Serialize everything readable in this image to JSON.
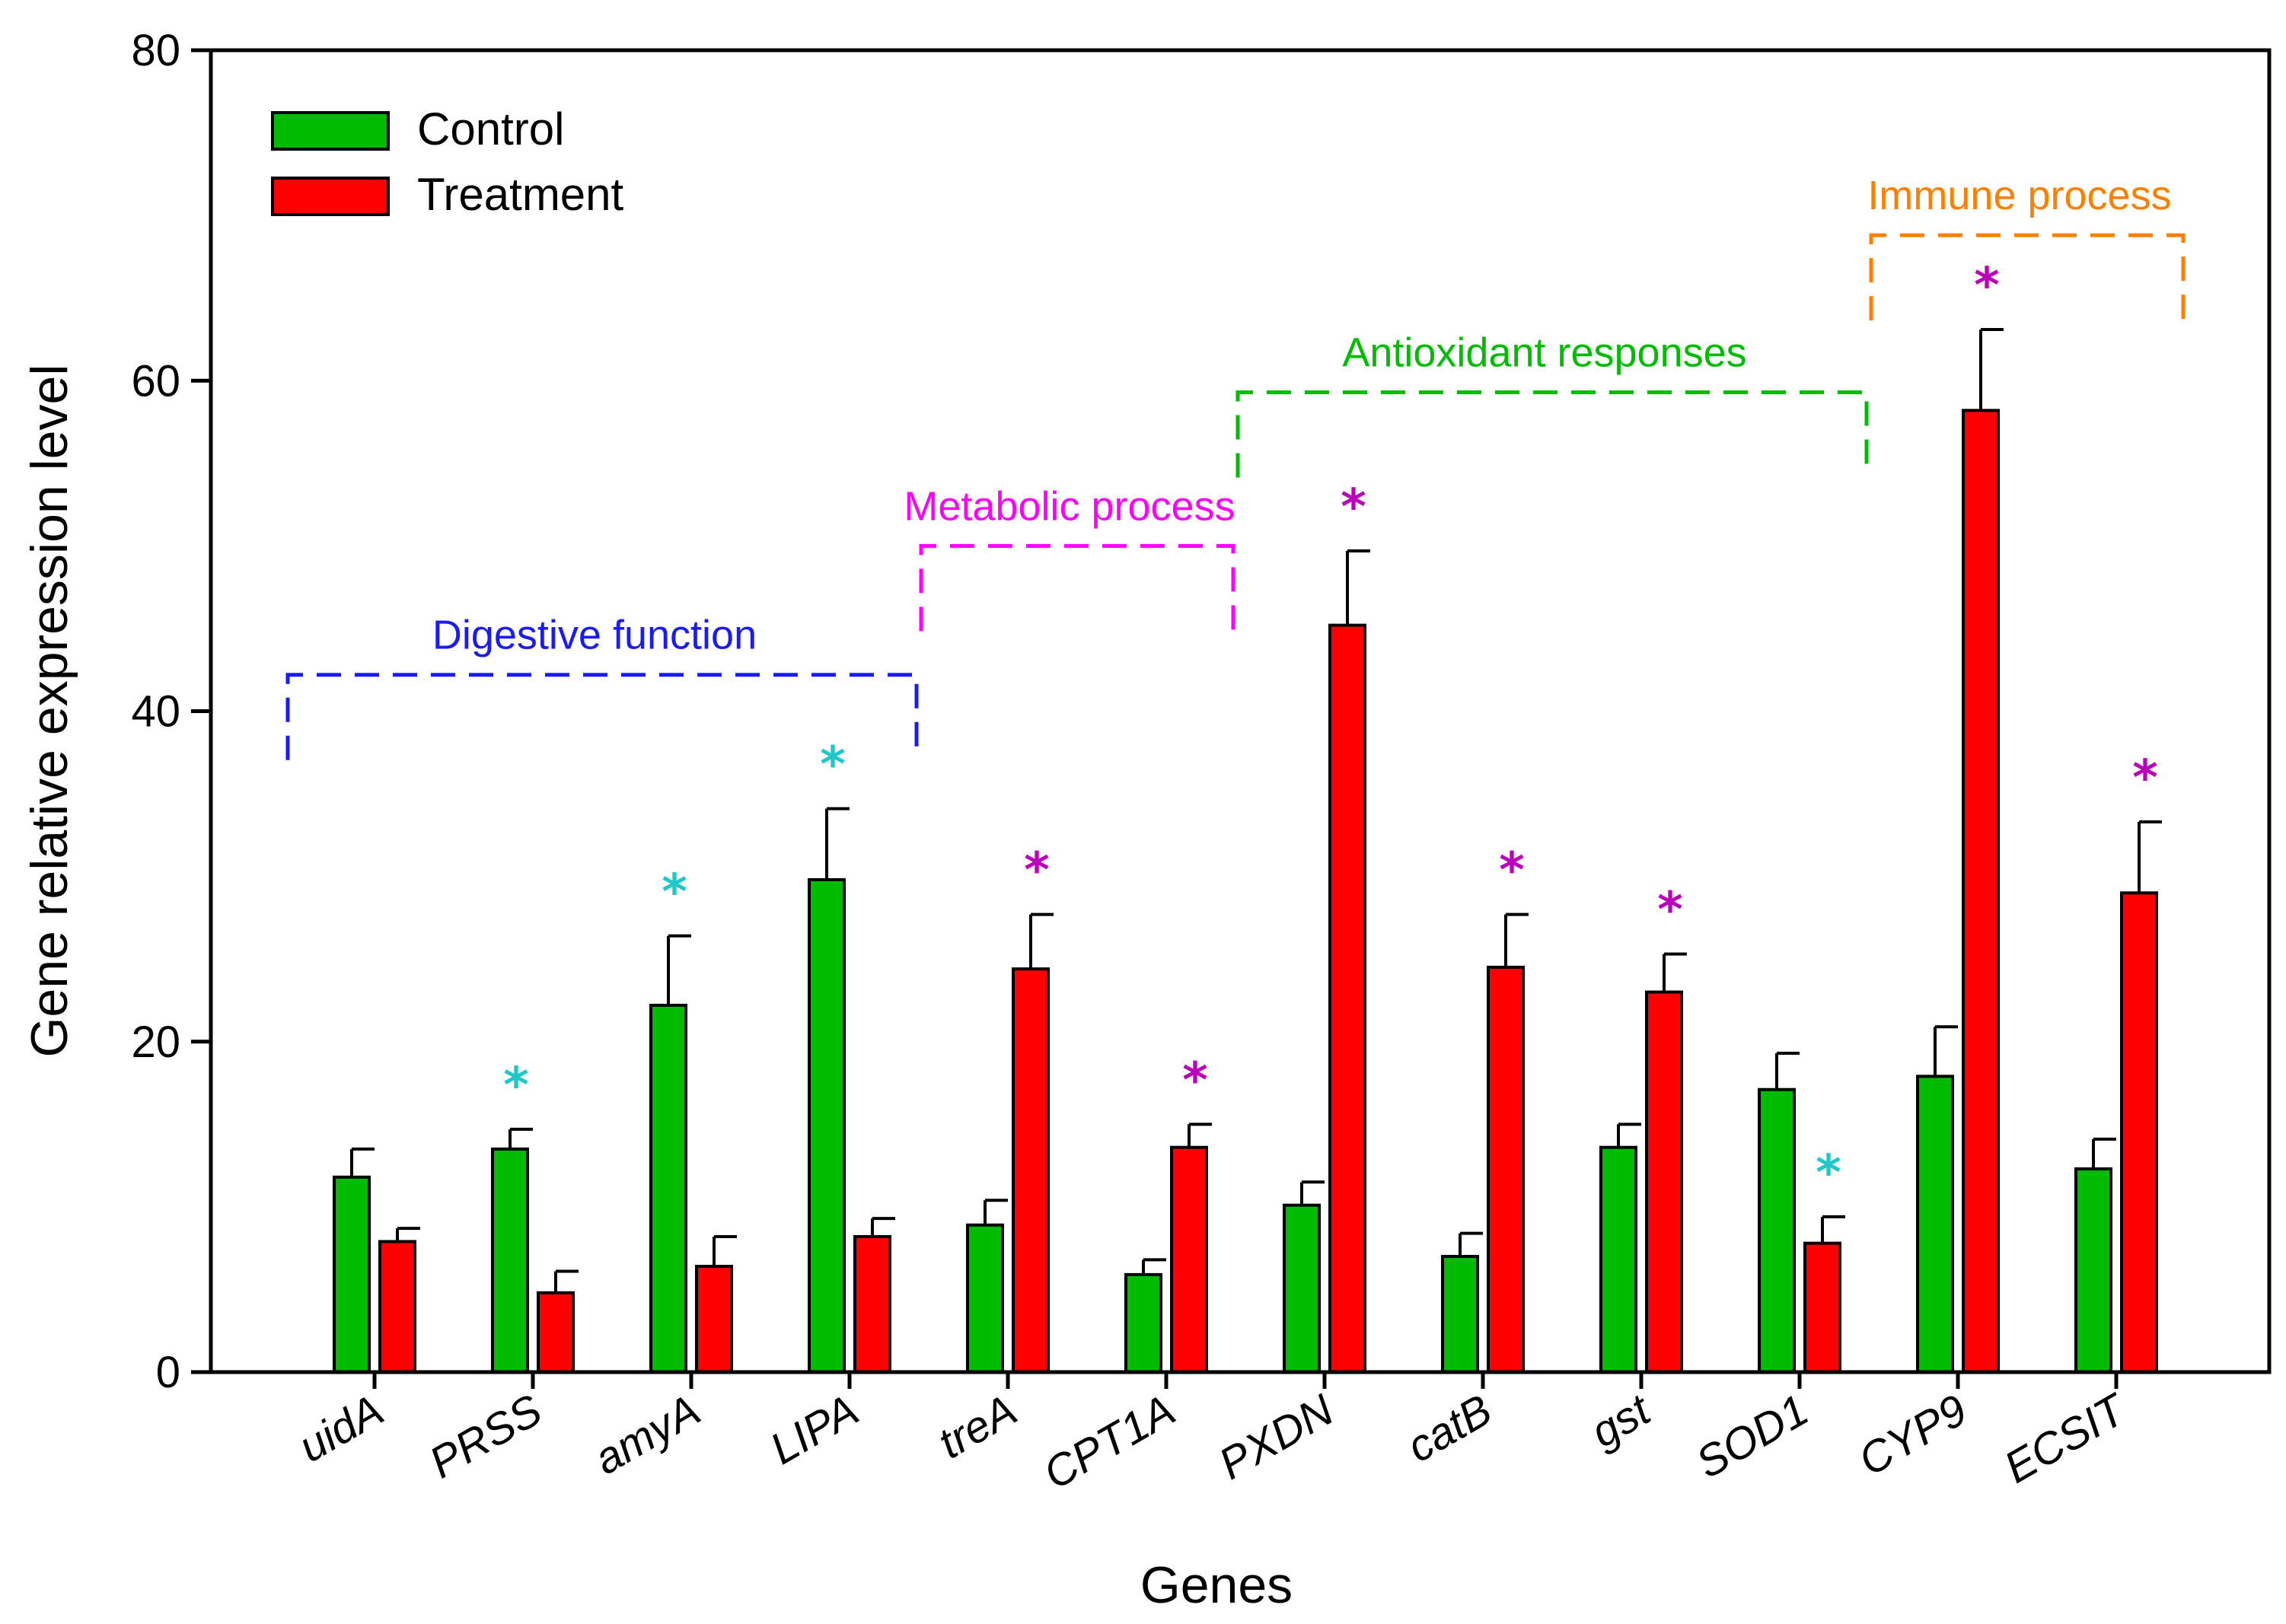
{
  "chart_data": {
    "type": "bar",
    "xlabel": "Genes",
    "ylabel": "Gene relative expression level",
    "ylim": [
      0,
      80
    ],
    "yticks": [
      0,
      20,
      40,
      60,
      80
    ],
    "grid": false,
    "legend_position": "top-left",
    "categories": [
      "uidA",
      "PRSS",
      "amyA",
      "LIPA",
      "treA",
      "CPT1A",
      "PXDN",
      "catB",
      "gst",
      "SOD1",
      "CYP9",
      "ECSIT"
    ],
    "series": [
      {
        "name": "Control",
        "color": "#00bb00",
        "values": [
          11.8,
          13.5,
          22.2,
          29.8,
          8.9,
          5.9,
          10.1,
          7.0,
          13.6,
          17.1,
          17.9,
          12.3
        ],
        "errors": [
          1.7,
          1.2,
          4.2,
          4.3,
          1.5,
          0.9,
          1.4,
          1.4,
          1.4,
          2.2,
          3.0,
          1.8
        ],
        "significance": [
          "",
          "*",
          "*",
          "*",
          "",
          "",
          "",
          "",
          "",
          "",
          "",
          ""
        ]
      },
      {
        "name": "Treatment",
        "color": "#ff0000",
        "values": [
          7.9,
          4.8,
          6.4,
          8.2,
          24.4,
          13.6,
          45.2,
          24.5,
          23.0,
          7.8,
          58.2,
          29.0
        ],
        "errors": [
          0.8,
          1.3,
          1.8,
          1.1,
          3.3,
          1.4,
          4.5,
          3.2,
          2.3,
          1.6,
          4.9,
          4.3
        ],
        "significance": [
          "",
          "",
          "",
          "",
          "*",
          "*",
          "*",
          "*",
          "*",
          "*",
          "*",
          "*"
        ]
      }
    ],
    "significance_colors": {
      "down": "#1fc8c8",
      "up": "#bb00bb"
    },
    "groups": [
      {
        "label": "Digestive function",
        "color": "#1a1aff",
        "from": "uidA",
        "to": "LIPA",
        "y": 42.2
      },
      {
        "label": "Metabolic process",
        "color": "#ff00ff",
        "from": "treA",
        "to": "CPT1A",
        "y": 50.0
      },
      {
        "label": "Antioxidant responses",
        "color": "#00bb00",
        "from": "PXDN",
        "to": "SOD1",
        "y": 59.3
      },
      {
        "label": "Immune process",
        "color": "#ff8000",
        "from": "CYP9",
        "to": "ECSIT",
        "y": 68.8
      }
    ]
  }
}
